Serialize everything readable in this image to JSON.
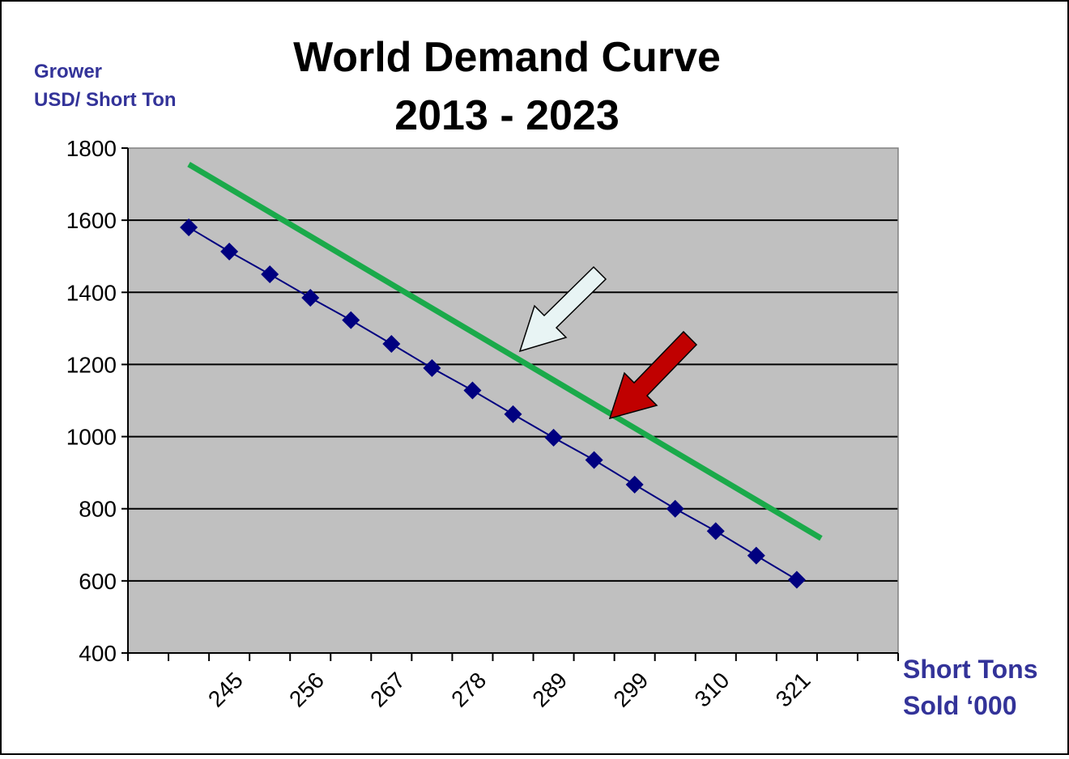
{
  "chart_data": {
    "type": "line",
    "title_line1": "World Demand Curve",
    "title_line2": "2013 - 2023",
    "ylabel_line1": "Grower",
    "ylabel_line2": "USD/ Short Ton",
    "xlabel_line1": "Short Tons",
    "xlabel_line2": "Sold ‘000",
    "ylim": [
      400,
      1800
    ],
    "yticks": [
      400,
      600,
      800,
      1000,
      1200,
      1400,
      1600,
      1800
    ],
    "x_tick_labels": [
      "245",
      "256",
      "267",
      "278",
      "289",
      "299",
      "310",
      "321"
    ],
    "x_category_count": 19,
    "x_tick_label_indices": [
      1,
      3,
      5,
      7,
      9,
      11,
      13,
      15
    ],
    "grid": "horizontal",
    "plot_background": "#c0c0c0",
    "series": [
      {
        "values": [
          1580,
          1513,
          1450,
          1385,
          1323,
          1257,
          1190,
          1128,
          1062,
          997,
          935,
          867,
          800,
          738,
          670,
          603
        ],
        "color": "#000080",
        "marker": "diamond"
      },
      {
        "start_index": 0,
        "end_index": 15.6,
        "start_value": 1755,
        "end_value": 718,
        "color": "#1aaa4a",
        "marker": "none"
      }
    ],
    "annotations": [
      {
        "type": "arrow",
        "fill": "#e8f4f4",
        "stroke": "#000000",
        "points_toward": "green-line"
      },
      {
        "type": "arrow",
        "fill": "#c00000",
        "stroke": "#000000",
        "points_toward": "green-line"
      }
    ]
  }
}
